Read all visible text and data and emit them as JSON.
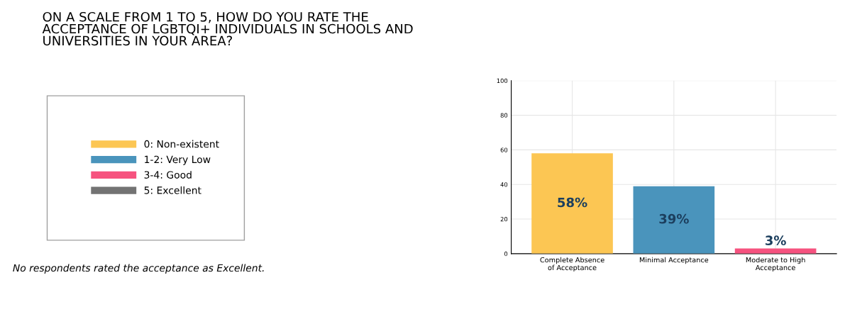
{
  "chart_data": {
    "type": "bar",
    "title": "ON A SCALE FROM 1 TO 5, HOW DO YOU RATE THE\nACCEPTANCE OF LGBTQI+ INDIVIDUALS IN SCHOOLS AND\nUNIVERSITIES IN YOUR AREA?",
    "categories": [
      "Complete Absence\nof Acceptance",
      "Minimal Acceptance",
      "Moderate to High\nAcceptance"
    ],
    "stacked": true,
    "series": [
      {
        "name": "0: Non-existent",
        "color": "#fcc653",
        "values": [
          58,
          null,
          null
        ],
        "value_labels": [
          "58%",
          null,
          null
        ]
      },
      {
        "name": "1-2: Very Low",
        "color": "#4a94bc",
        "values": [
          null,
          39,
          null
        ],
        "value_labels": [
          null,
          "39%",
          null
        ]
      },
      {
        "name": "3-4: Good",
        "color": "#f6527f",
        "values": [
          null,
          null,
          3
        ],
        "value_labels": [
          null,
          null,
          "3%"
        ]
      },
      {
        "name": "5: Excellent",
        "color": "#737373",
        "values": [
          null,
          null,
          null
        ]
      }
    ],
    "ylim": [
      0,
      100
    ],
    "yticks": [
      0,
      20,
      40,
      60,
      80,
      100
    ],
    "grid": true,
    "legend": "left",
    "annotations": [
      "No respondents rated the acceptance as Excellent."
    ]
  }
}
